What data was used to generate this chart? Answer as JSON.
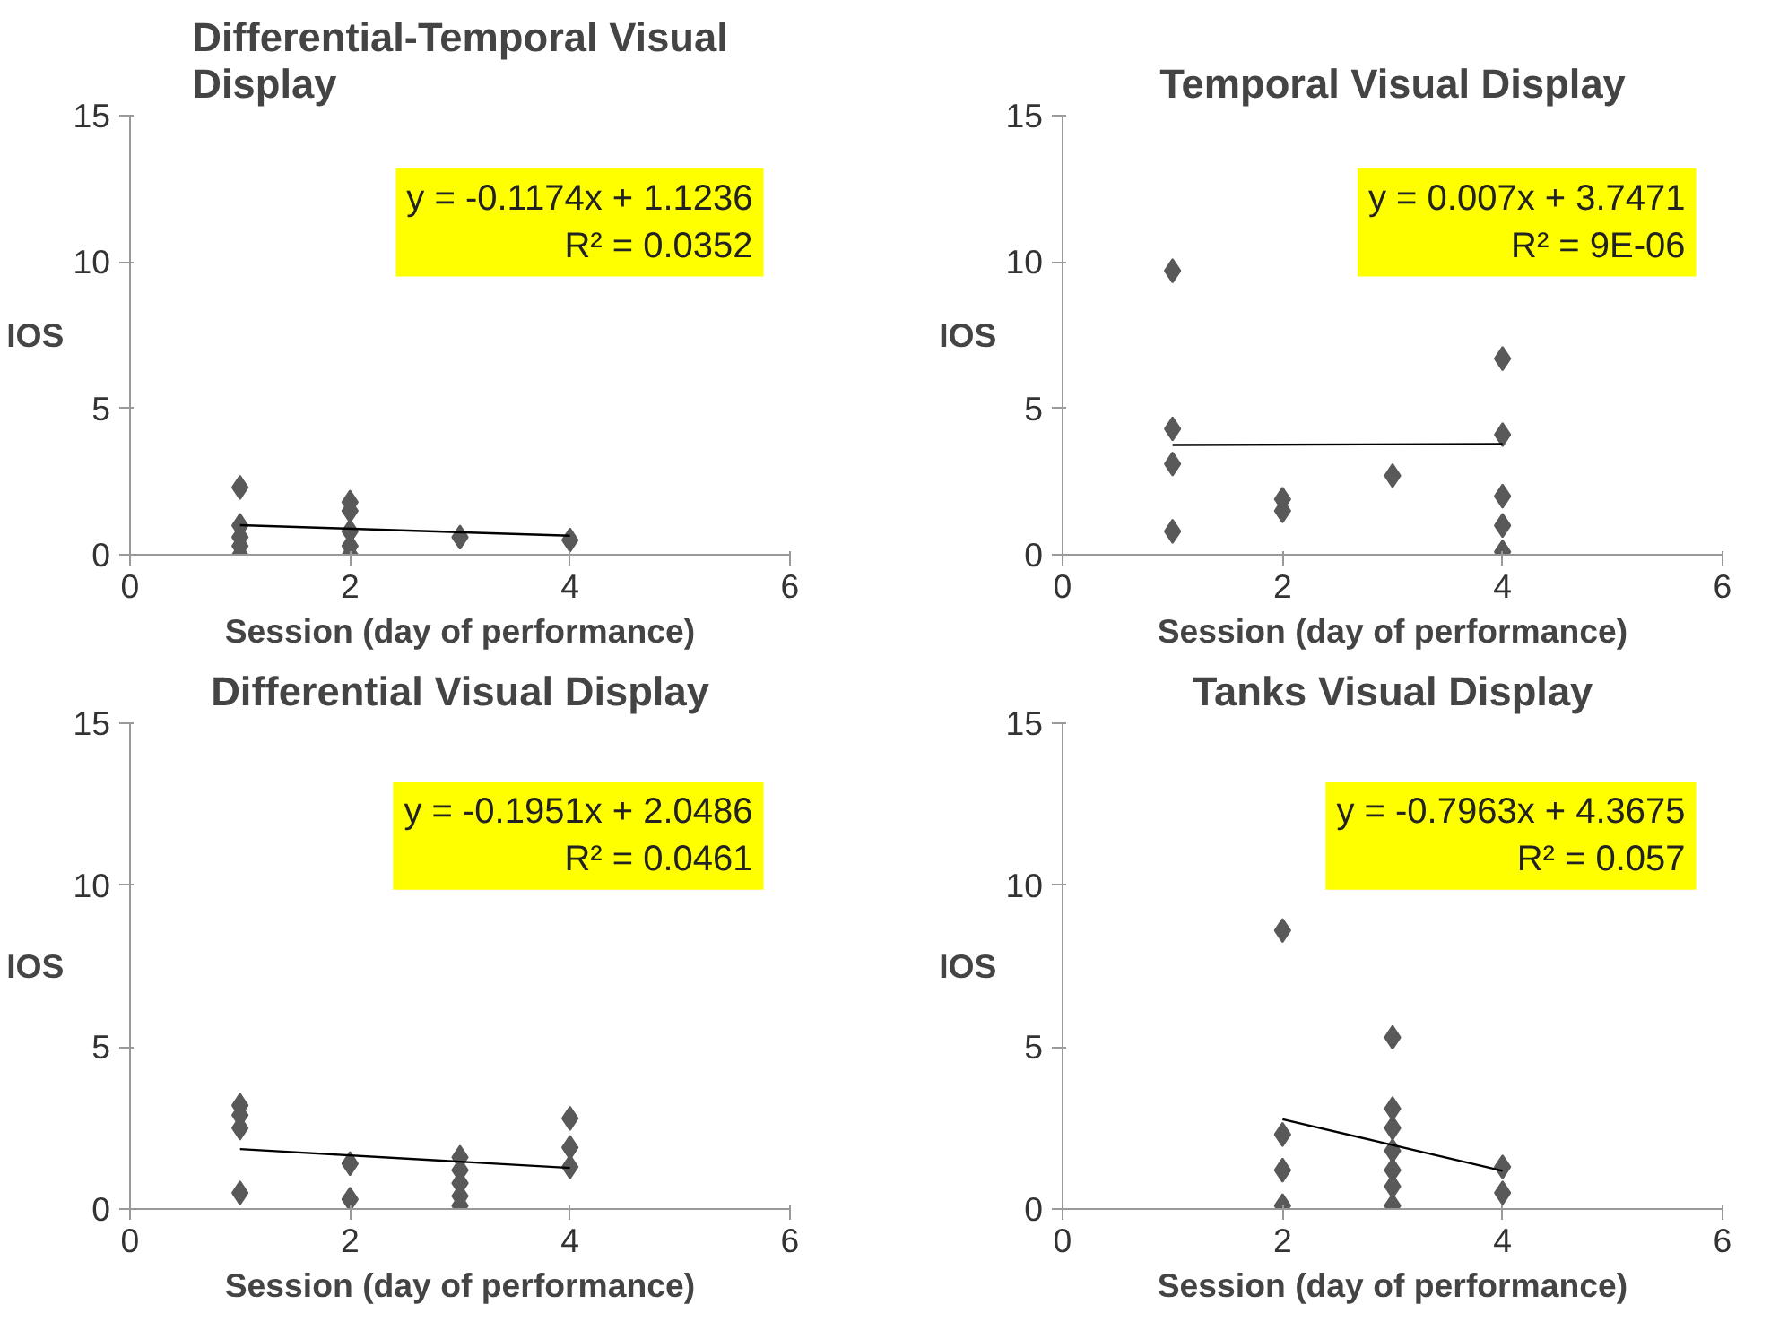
{
  "chart_data": [
    {
      "type": "scatter",
      "title": "Differential-Temporal Visual Display",
      "xlabel": "Session (day of performance)",
      "ylabel": "IOS",
      "xlim": [
        0,
        6
      ],
      "xticks": [
        0,
        2,
        4,
        6
      ],
      "ylim": [
        0,
        15
      ],
      "yticks": [
        0,
        5,
        10,
        15
      ],
      "grid": false,
      "marker": "diamond",
      "annotations": [
        "y = -0.1174x + 1.1236",
        "R² = 0.0352"
      ],
      "series": [
        {
          "color": "#595959",
          "x": [
            1,
            1,
            1,
            1,
            1,
            2,
            2,
            2,
            2,
            2,
            3,
            4
          ],
          "values": [
            2.3,
            1.0,
            0.6,
            0.3,
            0.0,
            1.8,
            1.5,
            0.8,
            0.3,
            0.0,
            0.6,
            0.5
          ]
        },
        {
          "type": "line",
          "color": "#000000",
          "marker": "none",
          "x": [
            1,
            4
          ],
          "values": [
            1.01,
            0.65
          ]
        }
      ]
    },
    {
      "type": "scatter",
      "title": "Temporal Visual Display",
      "xlabel": "Session (day of performance)",
      "ylabel": "IOS",
      "xlim": [
        0,
        6
      ],
      "xticks": [
        0,
        2,
        4,
        6
      ],
      "ylim": [
        0,
        15
      ],
      "yticks": [
        0,
        5,
        10,
        15
      ],
      "grid": false,
      "marker": "diamond",
      "annotations": [
        "y = 0.007x + 3.7471",
        "R² = 9E-06"
      ],
      "series": [
        {
          "color": "#595959",
          "x": [
            1,
            1,
            1,
            1,
            2,
            2,
            3,
            4,
            4,
            4,
            4,
            4
          ],
          "values": [
            9.7,
            4.3,
            3.1,
            0.8,
            1.9,
            1.5,
            2.7,
            6.7,
            4.1,
            2.0,
            1.0,
            0.1
          ]
        },
        {
          "type": "line",
          "color": "#000000",
          "marker": "none",
          "x": [
            1,
            4
          ],
          "values": [
            3.75,
            3.78
          ]
        }
      ]
    },
    {
      "type": "scatter",
      "title": "Differential Visual Display",
      "xlabel": "Session (day of performance)",
      "ylabel": "IOS",
      "xlim": [
        0,
        6
      ],
      "xticks": [
        0,
        2,
        4,
        6
      ],
      "ylim": [
        0,
        15
      ],
      "yticks": [
        0,
        5,
        10,
        15
      ],
      "grid": false,
      "marker": "diamond",
      "annotations": [
        "y = -0.1951x + 2.0486",
        "R² = 0.0461"
      ],
      "series": [
        {
          "color": "#595959",
          "x": [
            1,
            1,
            1,
            1,
            2,
            2,
            3,
            3,
            3,
            3,
            3,
            4,
            4,
            4
          ],
          "values": [
            3.2,
            2.9,
            2.5,
            0.5,
            1.4,
            0.3,
            1.6,
            1.2,
            0.8,
            0.4,
            0.1,
            2.8,
            1.9,
            1.3
          ]
        },
        {
          "type": "line",
          "color": "#000000",
          "marker": "none",
          "x": [
            1,
            4
          ],
          "values": [
            1.85,
            1.27
          ]
        }
      ]
    },
    {
      "type": "scatter",
      "title": "Tanks Visual Display",
      "xlabel": "Session (day of performance)",
      "ylabel": "IOS",
      "xlim": [
        0,
        6
      ],
      "xticks": [
        0,
        2,
        4,
        6
      ],
      "ylim": [
        0,
        15
      ],
      "yticks": [
        0,
        5,
        10,
        15
      ],
      "grid": false,
      "marker": "diamond",
      "annotations": [
        "y = -0.7963x + 4.3675",
        "R² = 0.057"
      ],
      "series": [
        {
          "color": "#595959",
          "x": [
            2,
            2,
            2,
            2,
            3,
            3,
            3,
            3,
            3,
            3,
            3,
            4,
            4
          ],
          "values": [
            8.6,
            2.3,
            1.2,
            0.1,
            5.3,
            3.1,
            2.5,
            1.8,
            1.2,
            0.7,
            0.1,
            1.3,
            0.5
          ]
        },
        {
          "type": "line",
          "color": "#000000",
          "marker": "none",
          "x": [
            2,
            4
          ],
          "values": [
            2.77,
            1.18
          ]
        }
      ]
    }
  ]
}
